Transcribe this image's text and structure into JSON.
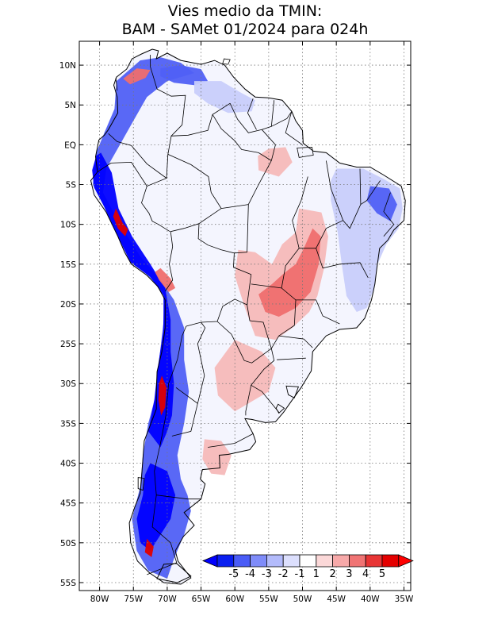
{
  "title_line1": "Vies medio da TMIN:",
  "title_line2": "BAM - SAMet 01/2024  para 024h",
  "map": {
    "lon_range": [
      -83,
      -34
    ],
    "lat_range": [
      -56,
      13
    ],
    "grid": "dotted",
    "lat_ticks": [
      {
        "value": 10,
        "label": "10N"
      },
      {
        "value": 5,
        "label": "5N"
      },
      {
        "value": 0,
        "label": "EQ"
      },
      {
        "value": -5,
        "label": "5S"
      },
      {
        "value": -10,
        "label": "10S"
      },
      {
        "value": -15,
        "label": "15S"
      },
      {
        "value": -20,
        "label": "20S"
      },
      {
        "value": -25,
        "label": "25S"
      },
      {
        "value": -30,
        "label": "30S"
      },
      {
        "value": -35,
        "label": "35S"
      },
      {
        "value": -40,
        "label": "40S"
      },
      {
        "value": -45,
        "label": "45S"
      },
      {
        "value": -50,
        "label": "50S"
      },
      {
        "value": -55,
        "label": "55S"
      }
    ],
    "lon_ticks": [
      {
        "value": -80,
        "label": "80W"
      },
      {
        "value": -75,
        "label": "75W"
      },
      {
        "value": -70,
        "label": "70W"
      },
      {
        "value": -65,
        "label": "65W"
      },
      {
        "value": -60,
        "label": "60W"
      },
      {
        "value": -55,
        "label": "55W"
      },
      {
        "value": -50,
        "label": "50W"
      },
      {
        "value": -45,
        "label": "45W"
      },
      {
        "value": -40,
        "label": "40W"
      },
      {
        "value": -35,
        "label": "35W"
      }
    ]
  },
  "colorbar": {
    "labels": [
      "-5",
      "-4",
      "-3",
      "-2",
      "-1",
      "1",
      "2",
      "3",
      "4",
      "5"
    ],
    "colors": [
      "#0a1ff0",
      "#4a5cf7",
      "#7f8cf9",
      "#b3bbfb",
      "#dcdffd",
      "#ffffff",
      "#fbd8d8",
      "#f7a9a9",
      "#f07474",
      "#e83535",
      "#e40000"
    ],
    "min_color": "#0000ff",
    "max_color": "#ff0000"
  },
  "colors": {
    "deep_blue": "#0000ff",
    "mid_blue": "#5060f5",
    "light_blue": "#c8cdfb",
    "pale_blue": "#e6e8fd",
    "light_red": "#f6b9b9",
    "mid_red": "#ef6e6e",
    "deep_red": "#e00000",
    "coast": "#000000"
  }
}
